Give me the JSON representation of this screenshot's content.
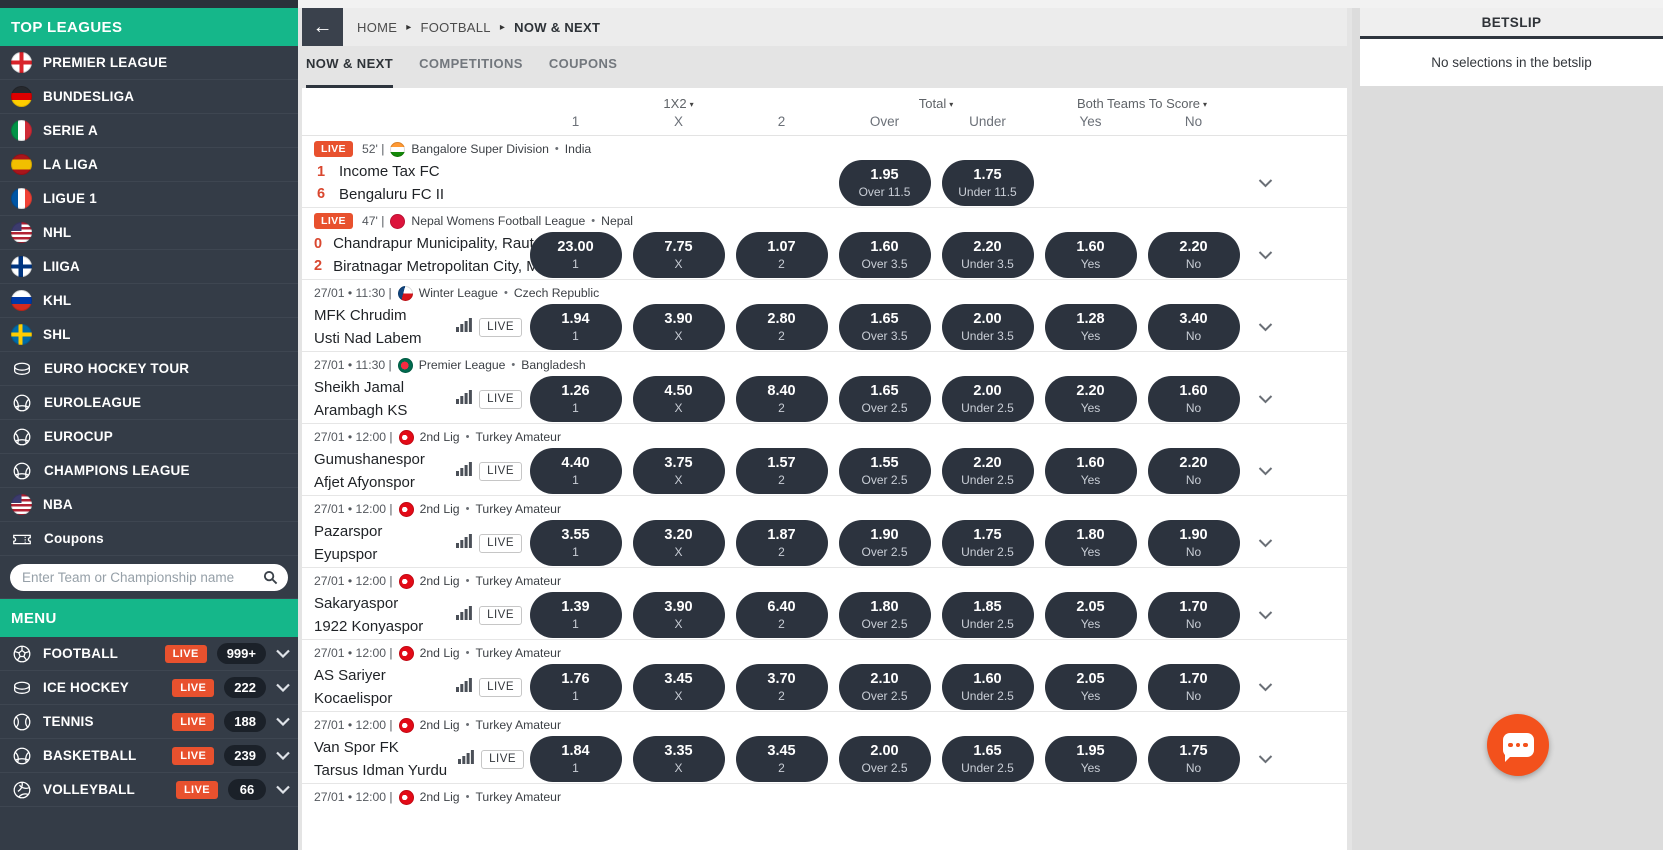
{
  "sidebar": {
    "top_leagues_title": "TOP LEAGUES",
    "leagues": [
      {
        "label": "PREMIER LEAGUE",
        "icon": "england-flag"
      },
      {
        "label": "BUNDESLIGA",
        "icon": "germany-flag"
      },
      {
        "label": "SERIE A",
        "icon": "italy-flag"
      },
      {
        "label": "LA LIGA",
        "icon": "spain-flag"
      },
      {
        "label": "LIGUE 1",
        "icon": "france-flag"
      },
      {
        "label": "NHL",
        "icon": "usa-flag"
      },
      {
        "label": "LIIGA",
        "icon": "finland-flag"
      },
      {
        "label": "KHL",
        "icon": "russia-flag"
      },
      {
        "label": "SHL",
        "icon": "sweden-flag"
      },
      {
        "label": "EURO HOCKEY TOUR",
        "icon": "puck"
      },
      {
        "label": "EUROLEAGUE",
        "icon": "basketball"
      },
      {
        "label": "EUROCUP",
        "icon": "basketball"
      },
      {
        "label": "CHAMPIONS LEAGUE",
        "icon": "basketball"
      },
      {
        "label": "NBA",
        "icon": "usa-flag"
      },
      {
        "label": "Coupons",
        "icon": "ticket"
      }
    ],
    "search_placeholder": "Enter Team or Championship name",
    "menu_title": "MENU",
    "sports": [
      {
        "label": "FOOTBALL",
        "icon": "football",
        "live": "LIVE",
        "count": "999+"
      },
      {
        "label": "ICE HOCKEY",
        "icon": "puck",
        "live": "LIVE",
        "count": "222"
      },
      {
        "label": "TENNIS",
        "icon": "tennis",
        "live": "LIVE",
        "count": "188"
      },
      {
        "label": "BASKETBALL",
        "icon": "basketball",
        "live": "LIVE",
        "count": "239"
      },
      {
        "label": "VOLLEYBALL",
        "icon": "volleyball",
        "live": "LIVE",
        "count": "66"
      }
    ]
  },
  "breadcrumb": {
    "items": [
      "HOME",
      "FOOTBALL",
      "NOW & NEXT"
    ]
  },
  "tabs": [
    {
      "label": "NOW & NEXT",
      "active": true
    },
    {
      "label": "COMPETITIONS",
      "active": false
    },
    {
      "label": "COUPONS",
      "active": false
    }
  ],
  "odds_header": {
    "group_1x2": "1X2",
    "group_total": "Total",
    "group_btts": "Both Teams To Score",
    "cols": [
      "1",
      "X",
      "2",
      "Over",
      "Under",
      "Yes",
      "No"
    ]
  },
  "matches": [
    {
      "live": true,
      "live_label": "LIVE",
      "meta_time": "52' |",
      "flag": "india",
      "league": "Bangalore Super Division",
      "country": "India",
      "scores": [
        "1",
        "6"
      ],
      "teams": [
        "Income Tax FC",
        "Bengaluru FC II"
      ],
      "stats_live": false,
      "odds": [
        null,
        null,
        null,
        {
          "v": "1.95",
          "l": "Over 11.5"
        },
        {
          "v": "1.75",
          "l": "Under 11.5"
        },
        null,
        null
      ]
    },
    {
      "live": true,
      "live_label": "LIVE",
      "meta_time": "47' |",
      "flag": "nepal",
      "league": "Nepal Womens Football League",
      "country": "Nepal",
      "scores": [
        "0",
        "2"
      ],
      "teams": [
        "Chandrapur Municipality, Rauta...",
        "Biratnagar Metropolitan City, M..."
      ],
      "stats_live": false,
      "odds": [
        {
          "v": "23.00",
          "l": "1"
        },
        {
          "v": "7.75",
          "l": "X"
        },
        {
          "v": "1.07",
          "l": "2"
        },
        {
          "v": "1.60",
          "l": "Over 3.5"
        },
        {
          "v": "2.20",
          "l": "Under 3.5"
        },
        {
          "v": "1.60",
          "l": "Yes"
        },
        {
          "v": "2.20",
          "l": "No"
        }
      ]
    },
    {
      "live": false,
      "meta_time": "27/01 • 11:30 |",
      "flag": "czech",
      "league": "Winter League",
      "country": "Czech Republic",
      "teams": [
        "MFK Chrudim",
        "Usti Nad Labem"
      ],
      "stats_live": true,
      "stats_live_label": "LIVE",
      "odds": [
        {
          "v": "1.94",
          "l": "1"
        },
        {
          "v": "3.90",
          "l": "X"
        },
        {
          "v": "2.80",
          "l": "2"
        },
        {
          "v": "1.65",
          "l": "Over 3.5"
        },
        {
          "v": "2.00",
          "l": "Under 3.5"
        },
        {
          "v": "1.28",
          "l": "Yes"
        },
        {
          "v": "3.40",
          "l": "No"
        }
      ]
    },
    {
      "live": false,
      "meta_time": "27/01 • 11:30 |",
      "flag": "bangladesh",
      "league": "Premier League",
      "country": "Bangladesh",
      "teams": [
        "Sheikh Jamal",
        "Arambagh KS"
      ],
      "stats_live": true,
      "stats_live_label": "LIVE",
      "odds": [
        {
          "v": "1.26",
          "l": "1"
        },
        {
          "v": "4.50",
          "l": "X"
        },
        {
          "v": "8.40",
          "l": "2"
        },
        {
          "v": "1.65",
          "l": "Over 2.5"
        },
        {
          "v": "2.00",
          "l": "Under 2.5"
        },
        {
          "v": "2.20",
          "l": "Yes"
        },
        {
          "v": "1.60",
          "l": "No"
        }
      ]
    },
    {
      "live": false,
      "meta_time": "27/01 • 12:00 |",
      "flag": "turkey",
      "league": "2nd Lig",
      "country": "Turkey Amateur",
      "teams": [
        "Gumushanespor",
        "Afjet Afyonspor"
      ],
      "stats_live": true,
      "stats_live_label": "LIVE",
      "odds": [
        {
          "v": "4.40",
          "l": "1"
        },
        {
          "v": "3.75",
          "l": "X"
        },
        {
          "v": "1.57",
          "l": "2"
        },
        {
          "v": "1.55",
          "l": "Over 2.5"
        },
        {
          "v": "2.20",
          "l": "Under 2.5"
        },
        {
          "v": "1.60",
          "l": "Yes"
        },
        {
          "v": "2.20",
          "l": "No"
        }
      ]
    },
    {
      "live": false,
      "meta_time": "27/01 • 12:00 |",
      "flag": "turkey",
      "league": "2nd Lig",
      "country": "Turkey Amateur",
      "teams": [
        "Pazarspor",
        "Eyupspor"
      ],
      "stats_live": true,
      "stats_live_label": "LIVE",
      "odds": [
        {
          "v": "3.55",
          "l": "1"
        },
        {
          "v": "3.20",
          "l": "X"
        },
        {
          "v": "1.87",
          "l": "2"
        },
        {
          "v": "1.90",
          "l": "Over 2.5"
        },
        {
          "v": "1.75",
          "l": "Under 2.5"
        },
        {
          "v": "1.80",
          "l": "Yes"
        },
        {
          "v": "1.90",
          "l": "No"
        }
      ]
    },
    {
      "live": false,
      "meta_time": "27/01 • 12:00 |",
      "flag": "turkey",
      "league": "2nd Lig",
      "country": "Turkey Amateur",
      "teams": [
        "Sakaryaspor",
        "1922 Konyaspor"
      ],
      "stats_live": true,
      "stats_live_label": "LIVE",
      "odds": [
        {
          "v": "1.39",
          "l": "1"
        },
        {
          "v": "3.90",
          "l": "X"
        },
        {
          "v": "6.40",
          "l": "2"
        },
        {
          "v": "1.80",
          "l": "Over 2.5"
        },
        {
          "v": "1.85",
          "l": "Under 2.5"
        },
        {
          "v": "2.05",
          "l": "Yes"
        },
        {
          "v": "1.70",
          "l": "No"
        }
      ]
    },
    {
      "live": false,
      "meta_time": "27/01 • 12:00 |",
      "flag": "turkey",
      "league": "2nd Lig",
      "country": "Turkey Amateur",
      "teams": [
        "AS Sariyer",
        "Kocaelispor"
      ],
      "stats_live": true,
      "stats_live_label": "LIVE",
      "odds": [
        {
          "v": "1.76",
          "l": "1"
        },
        {
          "v": "3.45",
          "l": "X"
        },
        {
          "v": "3.70",
          "l": "2"
        },
        {
          "v": "2.10",
          "l": "Over 2.5"
        },
        {
          "v": "1.60",
          "l": "Under 2.5"
        },
        {
          "v": "2.05",
          "l": "Yes"
        },
        {
          "v": "1.70",
          "l": "No"
        }
      ]
    },
    {
      "live": false,
      "meta_time": "27/01 • 12:00 |",
      "flag": "turkey",
      "league": "2nd Lig",
      "country": "Turkey Amateur",
      "teams": [
        "Van Spor FK",
        "Tarsus Idman Yurdu"
      ],
      "stats_live": true,
      "stats_live_label": "LIVE",
      "odds": [
        {
          "v": "1.84",
          "l": "1"
        },
        {
          "v": "3.35",
          "l": "X"
        },
        {
          "v": "3.45",
          "l": "2"
        },
        {
          "v": "2.00",
          "l": "Over 2.5"
        },
        {
          "v": "1.65",
          "l": "Under 2.5"
        },
        {
          "v": "1.95",
          "l": "Yes"
        },
        {
          "v": "1.75",
          "l": "No"
        }
      ]
    },
    {
      "live": false,
      "partial": true,
      "meta_time": "27/01 • 12:00 |",
      "flag": "turkey",
      "league": "2nd Lig",
      "country": "Turkey Amateur",
      "teams": [],
      "stats_live": false,
      "odds": [
        null,
        null,
        null,
        null,
        null,
        null,
        null
      ]
    }
  ],
  "betslip": {
    "title": "BETSLIP",
    "empty_message": "No selections in the betslip"
  },
  "colors": {
    "accent_green": "#15b78a",
    "live_orange": "#e8512e",
    "pill_dark": "#2c333e",
    "score_red": "#d9472f",
    "chat_orange": "#f3511c"
  }
}
